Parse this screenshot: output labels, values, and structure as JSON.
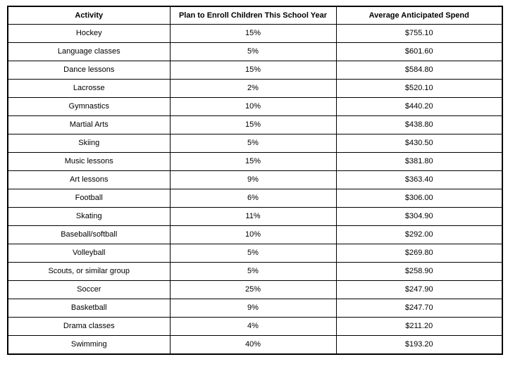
{
  "chart_data": {
    "type": "table",
    "columns": [
      "Activity",
      "Plan to Enroll Children This School Year",
      "Average Anticipated Spend"
    ],
    "rows": [
      [
        "Hockey",
        "15%",
        "$755.10"
      ],
      [
        "Language classes",
        "5%",
        "$601.60"
      ],
      [
        "Dance lessons",
        "15%",
        "$584.80"
      ],
      [
        "Lacrosse",
        "2%",
        "$520.10"
      ],
      [
        "Gymnastics",
        "10%",
        "$440.20"
      ],
      [
        "Martial Arts",
        "15%",
        "$438.80"
      ],
      [
        "Skiing",
        "5%",
        "$430.50"
      ],
      [
        "Music lessons",
        "15%",
        "$381.80"
      ],
      [
        "Art lessons",
        "9%",
        "$363.40"
      ],
      [
        "Football",
        "6%",
        "$306.00"
      ],
      [
        "Skating",
        "11%",
        "$304.90"
      ],
      [
        "Baseball/softball",
        "10%",
        "$292.00"
      ],
      [
        "Volleyball",
        "5%",
        "$269.80"
      ],
      [
        "Scouts, or similar group",
        "5%",
        "$258.90"
      ],
      [
        "Soccer",
        "25%",
        "$247.90"
      ],
      [
        "Basketball",
        "9%",
        "$247.70"
      ],
      [
        "Drama classes",
        "4%",
        "$211.20"
      ],
      [
        "Swimming",
        "40%",
        "$193.20"
      ]
    ]
  },
  "colors": {
    "border": "#000000",
    "background": "#ffffff",
    "text": "#000000"
  }
}
